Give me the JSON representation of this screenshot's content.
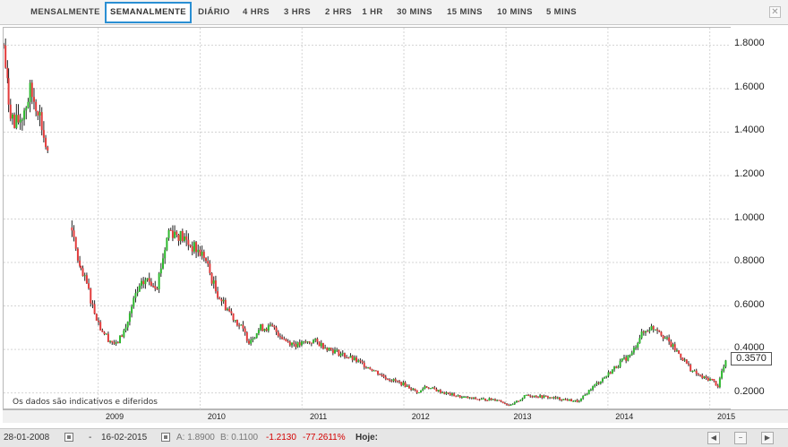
{
  "tabs": [
    {
      "label": "MENSALMENTE",
      "active": false
    },
    {
      "label": "SEMANALMENTE",
      "active": true
    },
    {
      "label": "DIÁRIO",
      "active": false
    },
    {
      "label": "4 HRS",
      "active": false
    },
    {
      "label": "3 HRS",
      "active": false
    },
    {
      "label": "2 HRS",
      "active": false
    },
    {
      "label": "1 HR",
      "active": false
    },
    {
      "label": "30 MINS",
      "active": false
    },
    {
      "label": "15 MINS",
      "active": false
    },
    {
      "label": "10 MINS",
      "active": false
    },
    {
      "label": "5 MINS",
      "active": false
    }
  ],
  "close_icon": "close-icon",
  "chart_data": {
    "type": "candlestick",
    "title": "",
    "xlabel": "",
    "ylabel": "",
    "x_ticks": [
      "2009",
      "2010",
      "2011",
      "2012",
      "2013",
      "2014",
      "2015"
    ],
    "y_ticks": [
      "1.8000",
      "1.6000",
      "1.4000",
      "1.2000",
      "1.0000",
      "0.8000",
      "0.6000",
      "0.4000",
      "0.2000"
    ],
    "ylim": [
      0.12,
      1.88
    ],
    "xlim": [
      "2008-01-28",
      "2015-03-20"
    ],
    "last_price": "0.3570",
    "up_color": "#2db82d",
    "down_color": "#e23b3b",
    "wick_color": "#222222",
    "grid": true,
    "close_anchors": [
      [
        "2008-01-28",
        1.8
      ],
      [
        "2008-02-15",
        1.55
      ],
      [
        "2008-03-07",
        1.42
      ],
      [
        "2008-04-04",
        1.48
      ],
      [
        "2008-05-02",
        1.58
      ],
      [
        "2008-05-30",
        1.52
      ],
      [
        "2008-06-20",
        1.38
      ],
      [
        "2008-07-11",
        1.25
      ],
      [
        "2008-07-14",
        null
      ],
      [
        "2008-09-22",
        null
      ],
      [
        "2008-09-29",
        0.93
      ],
      [
        "2008-10-13",
        0.86
      ],
      [
        "2008-10-31",
        0.75
      ],
      [
        "2008-11-21",
        0.7
      ],
      [
        "2008-12-12",
        0.6
      ],
      [
        "2009-01-09",
        0.5
      ],
      [
        "2009-02-06",
        0.45
      ],
      [
        "2009-03-06",
        0.42
      ],
      [
        "2009-04-10",
        0.5
      ],
      [
        "2009-05-15",
        0.65
      ],
      [
        "2009-06-19",
        0.72
      ],
      [
        "2009-07-31",
        0.7
      ],
      [
        "2009-09-11",
        0.95
      ],
      [
        "2009-10-16",
        0.93
      ],
      [
        "2009-11-27",
        0.88
      ],
      [
        "2010-01-15",
        0.83
      ],
      [
        "2010-02-26",
        0.67
      ],
      [
        "2010-04-02",
        0.6
      ],
      [
        "2010-05-28",
        0.5
      ],
      [
        "2010-06-25",
        0.44
      ],
      [
        "2010-08-06",
        0.5
      ],
      [
        "2010-09-17",
        0.5
      ],
      [
        "2010-11-05",
        0.44
      ],
      [
        "2010-12-17",
        0.42
      ],
      [
        "2011-02-11",
        0.44
      ],
      [
        "2011-04-15",
        0.4
      ],
      [
        "2011-06-24",
        0.36
      ],
      [
        "2011-08-26",
        0.32
      ],
      [
        "2011-10-28",
        0.27
      ],
      [
        "2011-12-30",
        0.24
      ],
      [
        "2012-02-24",
        0.2
      ],
      [
        "2012-03-16",
        0.23
      ],
      [
        "2012-05-25",
        0.2
      ],
      [
        "2012-07-27",
        0.18
      ],
      [
        "2012-09-28",
        0.17
      ],
      [
        "2012-11-30",
        0.17
      ],
      [
        "2013-01-18",
        0.14
      ],
      [
        "2013-03-15",
        0.19
      ],
      [
        "2013-05-31",
        0.18
      ],
      [
        "2013-07-26",
        0.17
      ],
      [
        "2013-09-20",
        0.16
      ],
      [
        "2013-11-01",
        0.22
      ],
      [
        "2013-12-27",
        0.28
      ],
      [
        "2014-02-14",
        0.34
      ],
      [
        "2014-03-28",
        0.38
      ],
      [
        "2014-04-25",
        0.46
      ],
      [
        "2014-05-30",
        0.5
      ],
      [
        "2014-06-27",
        0.5
      ],
      [
        "2014-08-08",
        0.43
      ],
      [
        "2014-09-19",
        0.37
      ],
      [
        "2014-10-31",
        0.3
      ],
      [
        "2014-12-05",
        0.27
      ],
      [
        "2015-01-09",
        0.26
      ],
      [
        "2015-01-30",
        0.23
      ],
      [
        "2015-02-13",
        0.3
      ],
      [
        "2015-03-06",
        0.357
      ]
    ]
  },
  "disclaimer": "Os dados são indicativos e diferidos",
  "infobar": {
    "start_date": "28-01-2008",
    "separator": "-",
    "end_date": "16-02-2015",
    "high": "A: 1.8900",
    "low": "B: 0.1100",
    "change": "-1.2130",
    "change_pct": "-77.2611%",
    "today_label": "Hoje:"
  }
}
